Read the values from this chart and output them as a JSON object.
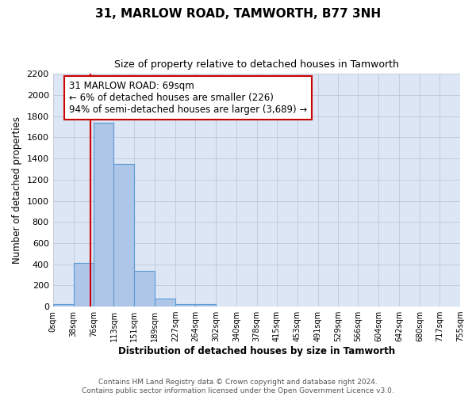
{
  "title": "31, MARLOW ROAD, TAMWORTH, B77 3NH",
  "subtitle": "Size of property relative to detached houses in Tamworth",
  "xlabel": "Distribution of detached houses by size in Tamworth",
  "ylabel": "Number of detached properties",
  "bin_edges": [
    0,
    38,
    76,
    113,
    151,
    189,
    227,
    264,
    302,
    340,
    378,
    415,
    453,
    491,
    529,
    566,
    604,
    642,
    680,
    717,
    755
  ],
  "bin_labels": [
    "0sqm",
    "38sqm",
    "76sqm",
    "113sqm",
    "151sqm",
    "189sqm",
    "227sqm",
    "264sqm",
    "302sqm",
    "340sqm",
    "378sqm",
    "415sqm",
    "453sqm",
    "491sqm",
    "529sqm",
    "566sqm",
    "604sqm",
    "642sqm",
    "680sqm",
    "717sqm",
    "755sqm"
  ],
  "bar_heights": [
    20,
    410,
    1740,
    1350,
    340,
    75,
    25,
    20,
    0,
    0,
    0,
    0,
    0,
    0,
    0,
    0,
    0,
    0,
    0,
    0
  ],
  "bar_color": "#aec6e8",
  "bar_edge_color": "#5b9bd5",
  "ax_bg_color": "#dce6f5",
  "ylim": [
    0,
    2200
  ],
  "yticks": [
    0,
    200,
    400,
    600,
    800,
    1000,
    1200,
    1400,
    1600,
    1800,
    2000,
    2200
  ],
  "property_size": 69,
  "red_line_x": 69,
  "annotation_title": "31 MARLOW ROAD: 69sqm",
  "annotation_line1": "← 6% of detached houses are smaller (226)",
  "annotation_line2": "94% of semi-detached houses are larger (3,689) →",
  "annotation_box_color": "#ffffff",
  "annotation_box_edge": "#cc0000",
  "red_line_color": "#cc0000",
  "footnote1": "Contains HM Land Registry data © Crown copyright and database right 2024.",
  "footnote2": "Contains public sector information licensed under the Open Government Licence v3.0.",
  "background_color": "#ffffff",
  "grid_color": "#c0c8d8"
}
